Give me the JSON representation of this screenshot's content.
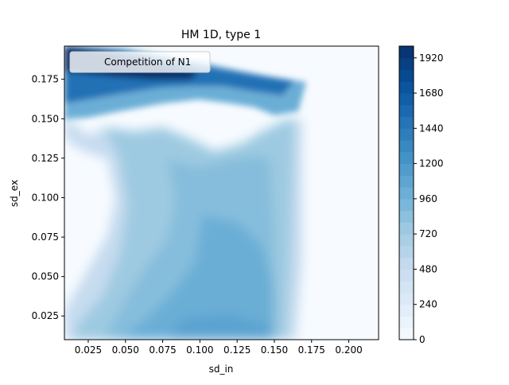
{
  "chart_data": {
    "type": "heatmap",
    "title": "HM 1D, type 1",
    "xlabel": "sd_in",
    "ylabel": "sd_ex",
    "xlim": [
      0.009,
      0.22
    ],
    "ylim": [
      0.01,
      0.196
    ],
    "x_ticks": [
      "0.025",
      "0.050",
      "0.075",
      "0.100",
      "0.125",
      "0.150",
      "0.175",
      "0.200"
    ],
    "x_tick_values": [
      0.025,
      0.05,
      0.075,
      0.1,
      0.125,
      0.15,
      0.175,
      0.2
    ],
    "y_ticks": [
      "0.025",
      "0.050",
      "0.075",
      "0.100",
      "0.125",
      "0.150",
      "0.175"
    ],
    "y_tick_values": [
      0.025,
      0.05,
      0.075,
      0.1,
      0.125,
      0.15,
      0.175
    ],
    "legend": {
      "label": "Competition of N1",
      "placement": "upper-left"
    },
    "colorbar": {
      "min": 0,
      "max": 2000,
      "ticks": [
        "0",
        "240",
        "480",
        "720",
        "960",
        "1200",
        "1440",
        "1680",
        "1920"
      ],
      "tick_values": [
        0,
        240,
        480,
        720,
        960,
        1200,
        1440,
        1680,
        1920
      ],
      "colormap": "Blues",
      "colors": [
        "#f7fbff",
        "#deebf7",
        "#c6dbef",
        "#9ecae1",
        "#6baed6",
        "#4292c6",
        "#2171b5",
        "#08519c",
        "#08306b"
      ]
    },
    "z_description_values": [
      {
        "region": "low sd_in, mid sd_ex",
        "approx_value": 0
      },
      {
        "region": "central band",
        "approx_value": 800
      },
      {
        "region": "sd_in 0.10-0.15, low sd_ex",
        "approx_value": 1000
      },
      {
        "region": "top edge sd_ex > 0.165",
        "approx_value": 1600
      },
      {
        "region": "top-left corner",
        "approx_value": 1950
      },
      {
        "region": "sd_in > 0.17",
        "approx_value": 0
      }
    ]
  }
}
